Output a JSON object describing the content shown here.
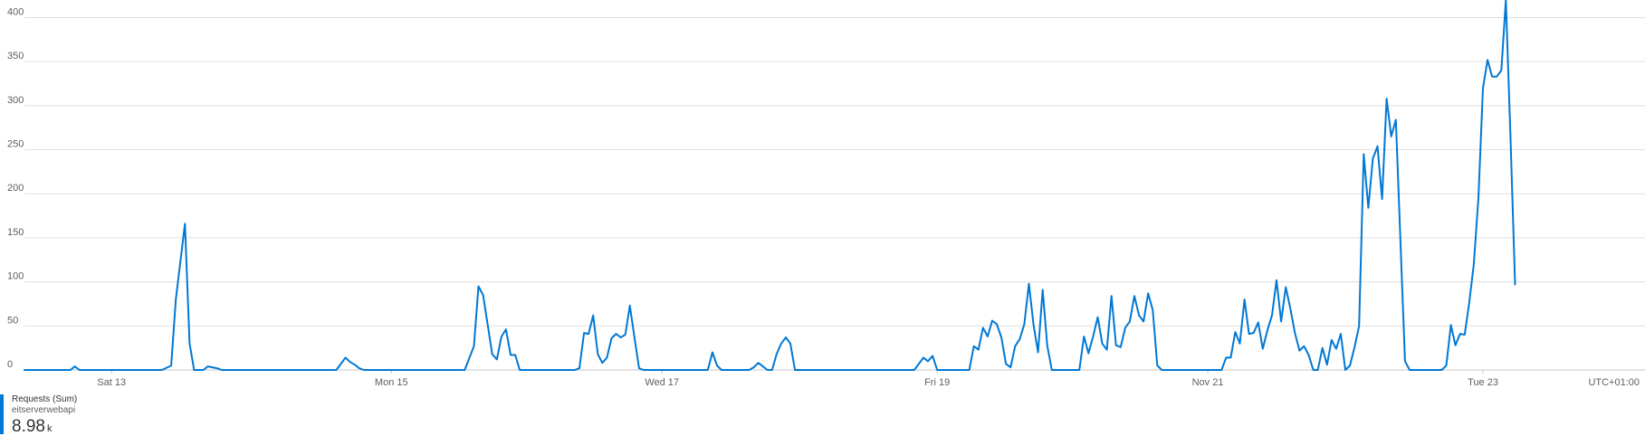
{
  "chart_data": {
    "type": "line",
    "ylim": [
      0,
      420
    ],
    "yticks": [
      0,
      50,
      100,
      150,
      200,
      250,
      300,
      350,
      400
    ],
    "x_range": [
      0,
      348
    ],
    "x_unit": "hours since Fri 12 00:00 UTC+01:00",
    "x_ticks": [
      {
        "x": 19,
        "label": "Sat 13"
      },
      {
        "x": 80,
        "label": "Mon 15"
      },
      {
        "x": 139,
        "label": "Wed 17"
      },
      {
        "x": 199,
        "label": "Fri 19"
      },
      {
        "x": 258,
        "label": "Nov 21"
      },
      {
        "x": 318,
        "label": "Tue 23"
      }
    ],
    "timezone_label": "UTC+01:00",
    "grid": true,
    "series": [
      {
        "name": "Requests (Sum)",
        "color": "#0078d4",
        "points": [
          [
            0,
            0
          ],
          [
            5,
            0
          ],
          [
            8,
            0
          ],
          [
            10,
            0
          ],
          [
            11,
            4
          ],
          [
            12,
            0
          ],
          [
            14,
            0
          ],
          [
            30,
            0
          ],
          [
            32,
            5
          ],
          [
            33,
            80
          ],
          [
            35,
            166
          ],
          [
            36,
            30
          ],
          [
            37,
            0
          ],
          [
            39,
            0
          ],
          [
            40,
            4
          ],
          [
            42,
            2
          ],
          [
            43,
            0
          ],
          [
            46,
            0
          ],
          [
            68,
            0
          ],
          [
            70,
            14
          ],
          [
            71,
            9
          ],
          [
            72,
            6
          ],
          [
            73,
            2
          ],
          [
            74,
            0
          ],
          [
            96,
            0
          ],
          [
            98,
            27
          ],
          [
            99,
            95
          ],
          [
            100,
            85
          ],
          [
            102,
            18
          ],
          [
            103,
            12
          ],
          [
            104,
            38
          ],
          [
            105,
            46
          ],
          [
            106,
            17
          ],
          [
            107,
            17
          ],
          [
            108,
            0
          ],
          [
            109,
            0
          ],
          [
            120,
            0
          ],
          [
            121,
            2
          ],
          [
            122,
            42
          ],
          [
            123,
            41
          ],
          [
            124,
            62
          ],
          [
            125,
            18
          ],
          [
            126,
            8
          ],
          [
            127,
            14
          ],
          [
            128,
            36
          ],
          [
            129,
            41
          ],
          [
            130,
            37
          ],
          [
            131,
            40
          ],
          [
            132,
            73
          ],
          [
            133,
            37
          ],
          [
            134,
            2
          ],
          [
            135,
            0
          ],
          [
            149,
            0
          ],
          [
            150,
            20
          ],
          [
            151,
            5
          ],
          [
            152,
            0
          ],
          [
            158,
            0
          ],
          [
            159,
            3
          ],
          [
            160,
            8
          ],
          [
            161,
            4
          ],
          [
            162,
            0
          ],
          [
            163,
            0
          ],
          [
            164,
            18
          ],
          [
            165,
            30
          ],
          [
            166,
            37
          ],
          [
            167,
            30
          ],
          [
            168,
            0
          ],
          [
            194,
            0
          ],
          [
            196,
            14
          ],
          [
            197,
            10
          ],
          [
            198,
            16
          ],
          [
            199,
            0
          ],
          [
            200,
            0
          ],
          [
            206,
            0
          ],
          [
            207,
            27
          ],
          [
            208,
            23
          ],
          [
            209,
            48
          ],
          [
            210,
            38
          ],
          [
            211,
            56
          ],
          [
            212,
            52
          ],
          [
            213,
            37
          ],
          [
            214,
            7
          ],
          [
            215,
            3
          ],
          [
            216,
            27
          ],
          [
            217,
            35
          ],
          [
            218,
            52
          ],
          [
            219,
            98
          ],
          [
            220,
            52
          ],
          [
            221,
            20
          ],
          [
            222,
            91
          ],
          [
            223,
            28
          ],
          [
            224,
            0
          ],
          [
            230,
            0
          ],
          [
            231,
            38
          ],
          [
            232,
            19
          ],
          [
            233,
            38
          ],
          [
            234,
            60
          ],
          [
            235,
            30
          ],
          [
            236,
            23
          ],
          [
            237,
            84
          ],
          [
            238,
            28
          ],
          [
            239,
            26
          ],
          [
            240,
            48
          ],
          [
            241,
            55
          ],
          [
            242,
            84
          ],
          [
            243,
            62
          ],
          [
            244,
            55
          ],
          [
            245,
            87
          ],
          [
            246,
            68
          ],
          [
            247,
            5
          ],
          [
            248,
            0
          ],
          [
            261,
            0
          ],
          [
            262,
            14
          ],
          [
            263,
            14
          ],
          [
            264,
            43
          ],
          [
            265,
            30
          ],
          [
            266,
            80
          ],
          [
            267,
            41
          ],
          [
            268,
            42
          ],
          [
            269,
            54
          ],
          [
            270,
            24
          ],
          [
            271,
            45
          ],
          [
            272,
            62
          ],
          [
            273,
            102
          ],
          [
            274,
            55
          ],
          [
            275,
            94
          ],
          [
            276,
            70
          ],
          [
            277,
            42
          ],
          [
            278,
            22
          ],
          [
            279,
            27
          ],
          [
            280,
            17
          ],
          [
            281,
            0
          ],
          [
            282,
            0
          ],
          [
            283,
            25
          ],
          [
            284,
            6
          ],
          [
            285,
            34
          ],
          [
            286,
            24
          ],
          [
            287,
            41
          ],
          [
            288,
            0
          ],
          [
            289,
            5
          ],
          [
            290,
            26
          ],
          [
            291,
            50
          ],
          [
            292,
            245
          ],
          [
            293,
            184
          ],
          [
            294,
            240
          ],
          [
            295,
            254
          ],
          [
            296,
            194
          ],
          [
            297,
            308
          ],
          [
            298,
            265
          ],
          [
            299,
            284
          ],
          [
            301,
            10
          ],
          [
            302,
            0
          ],
          [
            309,
            0
          ],
          [
            310,
            5
          ],
          [
            311,
            51
          ],
          [
            312,
            28
          ],
          [
            313,
            41
          ],
          [
            314,
            40
          ],
          [
            315,
            76
          ],
          [
            316,
            120
          ],
          [
            317,
            195
          ],
          [
            318,
            320
          ],
          [
            319,
            352
          ],
          [
            320,
            333
          ],
          [
            321,
            333
          ],
          [
            322,
            340
          ],
          [
            323,
            420
          ],
          [
            324,
            265
          ],
          [
            325,
            97
          ]
        ]
      }
    ]
  },
  "legend": {
    "metric": "Requests (Sum)",
    "resource": "eitserverwebapi",
    "value": "8.98",
    "unit": "k"
  }
}
